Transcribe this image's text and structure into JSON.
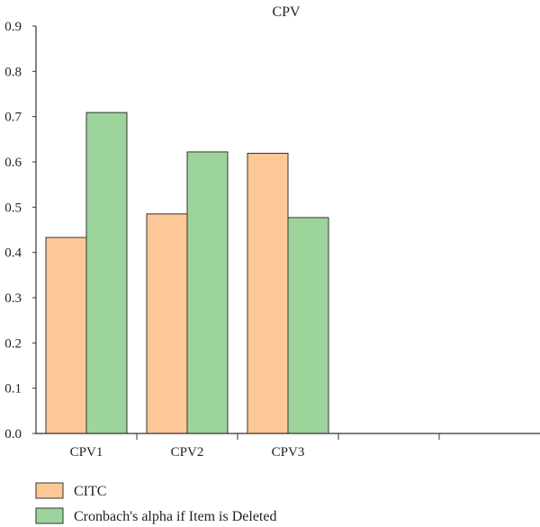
{
  "chart_data": {
    "type": "bar",
    "title": "CPV",
    "xlabel": "",
    "ylabel": "",
    "categories": [
      "CPV1",
      "CPV2",
      "CPV3",
      "",
      ""
    ],
    "series": [
      {
        "name": "CITC",
        "color": "#fcc896",
        "values": [
          0.433,
          0.485,
          0.619,
          null,
          null
        ]
      },
      {
        "name": "Cronbach's alpha if Item is Deleted",
        "color": "#9cd49c",
        "values": [
          0.709,
          0.622,
          0.477,
          null,
          null
        ]
      }
    ],
    "ylim": [
      0,
      0.9
    ],
    "yticks": [
      "0.0",
      "0.1",
      "0.2",
      "0.3",
      "0.4",
      "0.5",
      "0.6",
      "0.7",
      "0.8",
      "0.9"
    ],
    "grid": false,
    "legend_position": "bottom-left",
    "colors": {
      "axis": "#333333",
      "bar_stroke": "#333333"
    }
  }
}
